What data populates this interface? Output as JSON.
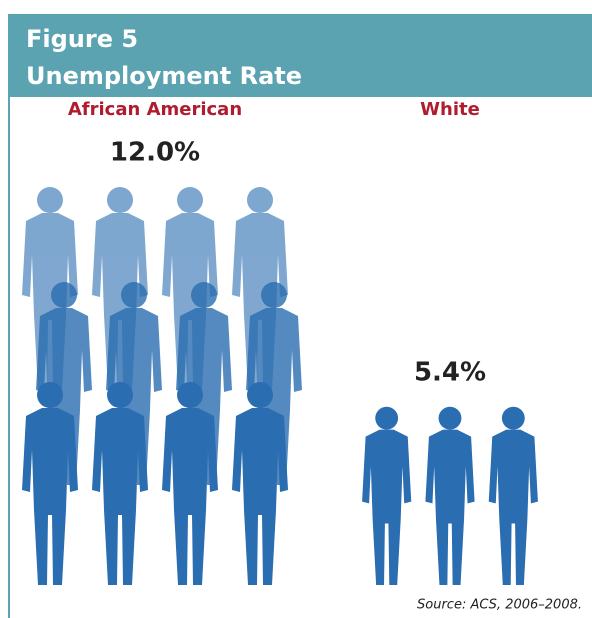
{
  "chart_data": {
    "type": "bar",
    "title": "Figure 5",
    "subtitle": "Unemployment Rate",
    "categories": [
      "African American",
      "White"
    ],
    "values": [
      12.0,
      5.4
    ],
    "value_labels": [
      "12.0%",
      "5.4%"
    ],
    "color": "#2a6db0",
    "category_color": "#b01c2e",
    "source": "Source: ACS, 2006–2008."
  }
}
